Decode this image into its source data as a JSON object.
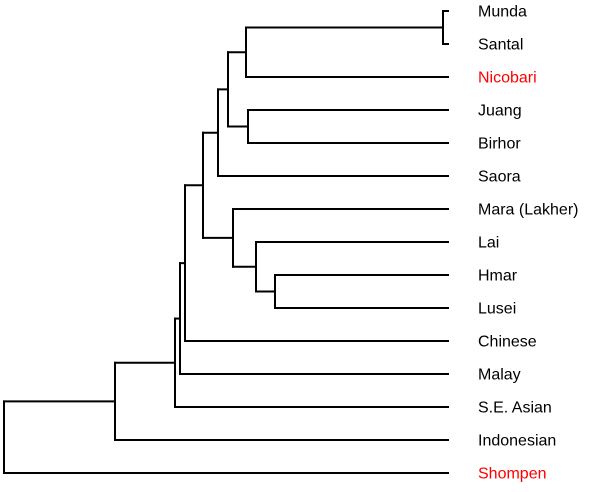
{
  "tree": {
    "colors": {
      "branch": "#000000",
      "label_default": "#000000",
      "label_highlight": "#ff0000"
    },
    "leaves": [
      {
        "id": "munda",
        "label": "Munda",
        "highlight": false
      },
      {
        "id": "santal",
        "label": "Santal",
        "highlight": false
      },
      {
        "id": "nicobari",
        "label": "Nicobari",
        "highlight": true
      },
      {
        "id": "juang",
        "label": "Juang",
        "highlight": false
      },
      {
        "id": "birhor",
        "label": "Birhor",
        "highlight": false
      },
      {
        "id": "saora",
        "label": "Saora",
        "highlight": false
      },
      {
        "id": "mara",
        "label": "Mara (Lakher)",
        "highlight": false
      },
      {
        "id": "lai",
        "label": "Lai",
        "highlight": false
      },
      {
        "id": "hmar",
        "label": "Hmar",
        "highlight": false
      },
      {
        "id": "lusei",
        "label": "Lusei",
        "highlight": false
      },
      {
        "id": "chinese",
        "label": "Chinese",
        "highlight": false
      },
      {
        "id": "malay",
        "label": "Malay",
        "highlight": false
      },
      {
        "id": "se-asian",
        "label": "S.E. Asian",
        "highlight": false
      },
      {
        "id": "indonesian",
        "label": "Indonesian",
        "highlight": false
      },
      {
        "id": "shompen",
        "label": "Shompen",
        "highlight": true
      }
    ]
  }
}
